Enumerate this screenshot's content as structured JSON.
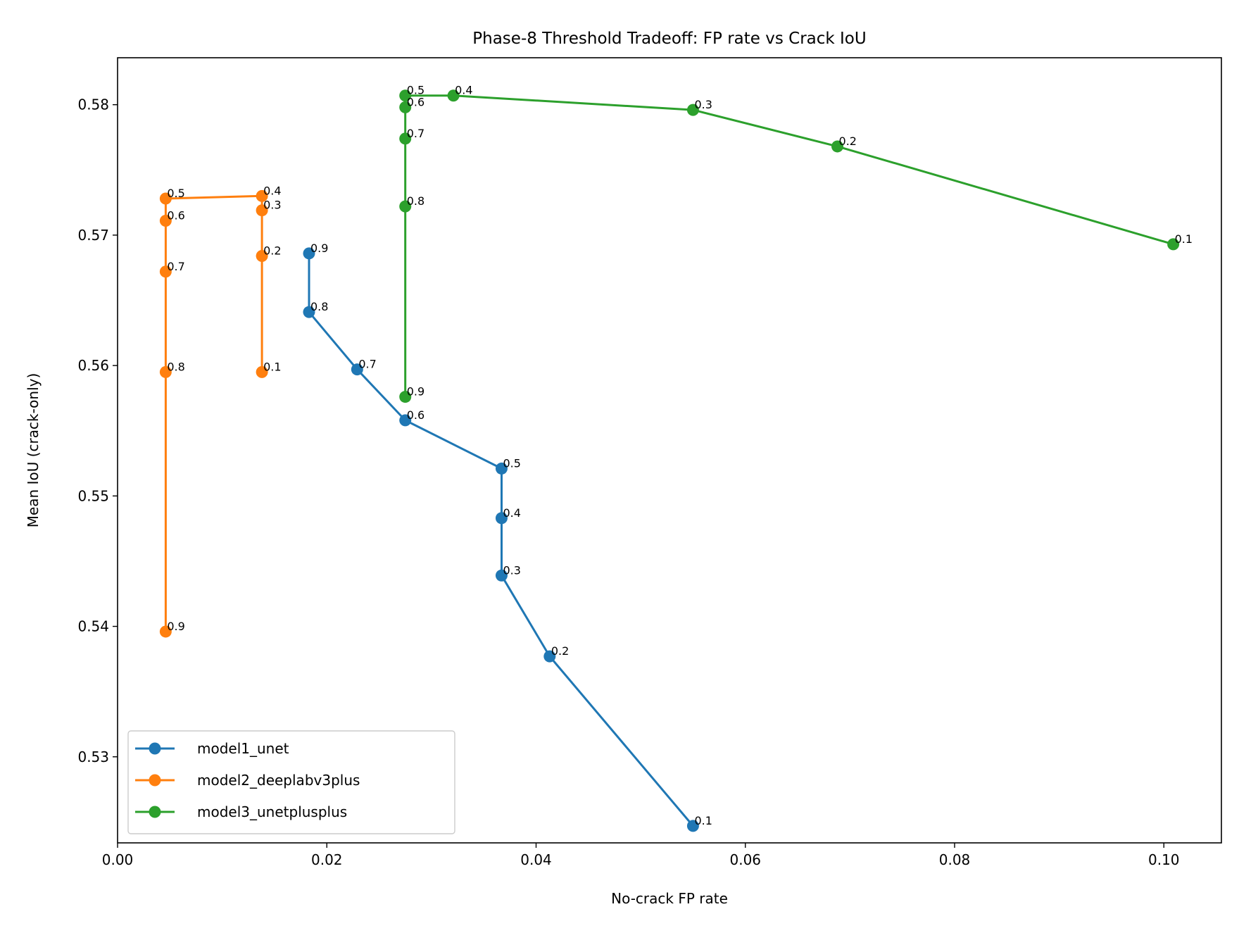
{
  "chart_data": {
    "type": "line",
    "title": "Phase-8 Threshold Tradeoff: FP rate vs Crack IoU",
    "xlabel": "No-crack FP rate",
    "ylabel": "Mean IoU (crack-only)",
    "xlim": [
      0.0,
      0.1055
    ],
    "ylim": [
      0.5234,
      0.5836
    ],
    "xticks": [
      "0.00",
      "0.02",
      "0.04",
      "0.06",
      "0.08",
      "0.10"
    ],
    "yticks": [
      "0.53",
      "0.54",
      "0.55",
      "0.56",
      "0.57",
      "0.58"
    ],
    "grid": false,
    "legend_position": "lower-left",
    "series": [
      {
        "name": "model1_unet",
        "color": "#1f77b4",
        "points": [
          {
            "x": 0.055,
            "y": 0.5247,
            "label": "0.1"
          },
          {
            "x": 0.0413,
            "y": 0.5377,
            "label": "0.2"
          },
          {
            "x": 0.0367,
            "y": 0.5439,
            "label": "0.3"
          },
          {
            "x": 0.0367,
            "y": 0.5483,
            "label": "0.4"
          },
          {
            "x": 0.0367,
            "y": 0.5521,
            "label": "0.5"
          },
          {
            "x": 0.0275,
            "y": 0.5558,
            "label": "0.6"
          },
          {
            "x": 0.0229,
            "y": 0.5597,
            "label": "0.7"
          },
          {
            "x": 0.0183,
            "y": 0.5641,
            "label": "0.8"
          },
          {
            "x": 0.0183,
            "y": 0.5686,
            "label": "0.9"
          }
        ]
      },
      {
        "name": "model2_deeplabv3plus",
        "color": "#ff7f0e",
        "points": [
          {
            "x": 0.0138,
            "y": 0.5595,
            "label": "0.1"
          },
          {
            "x": 0.0138,
            "y": 0.5684,
            "label": "0.2"
          },
          {
            "x": 0.0138,
            "y": 0.5719,
            "label": "0.3"
          },
          {
            "x": 0.0138,
            "y": 0.573,
            "label": "0.4"
          },
          {
            "x": 0.0046,
            "y": 0.5728,
            "label": "0.5"
          },
          {
            "x": 0.0046,
            "y": 0.5711,
            "label": "0.6"
          },
          {
            "x": 0.0046,
            "y": 0.5672,
            "label": "0.7"
          },
          {
            "x": 0.0046,
            "y": 0.5595,
            "label": "0.8"
          },
          {
            "x": 0.0046,
            "y": 0.5396,
            "label": "0.9"
          }
        ]
      },
      {
        "name": "model3_unetplusplus",
        "color": "#2ca02c",
        "points": [
          {
            "x": 0.1009,
            "y": 0.5693,
            "label": "0.1"
          },
          {
            "x": 0.0688,
            "y": 0.5768,
            "label": "0.2"
          },
          {
            "x": 0.055,
            "y": 0.5796,
            "label": "0.3"
          },
          {
            "x": 0.0321,
            "y": 0.5807,
            "label": "0.4"
          },
          {
            "x": 0.0275,
            "y": 0.5807,
            "label": "0.5"
          },
          {
            "x": 0.0275,
            "y": 0.5798,
            "label": "0.6"
          },
          {
            "x": 0.0275,
            "y": 0.5774,
            "label": "0.7"
          },
          {
            "x": 0.0275,
            "y": 0.5722,
            "label": "0.8"
          },
          {
            "x": 0.0275,
            "y": 0.5576,
            "label": "0.9"
          }
        ]
      }
    ]
  }
}
